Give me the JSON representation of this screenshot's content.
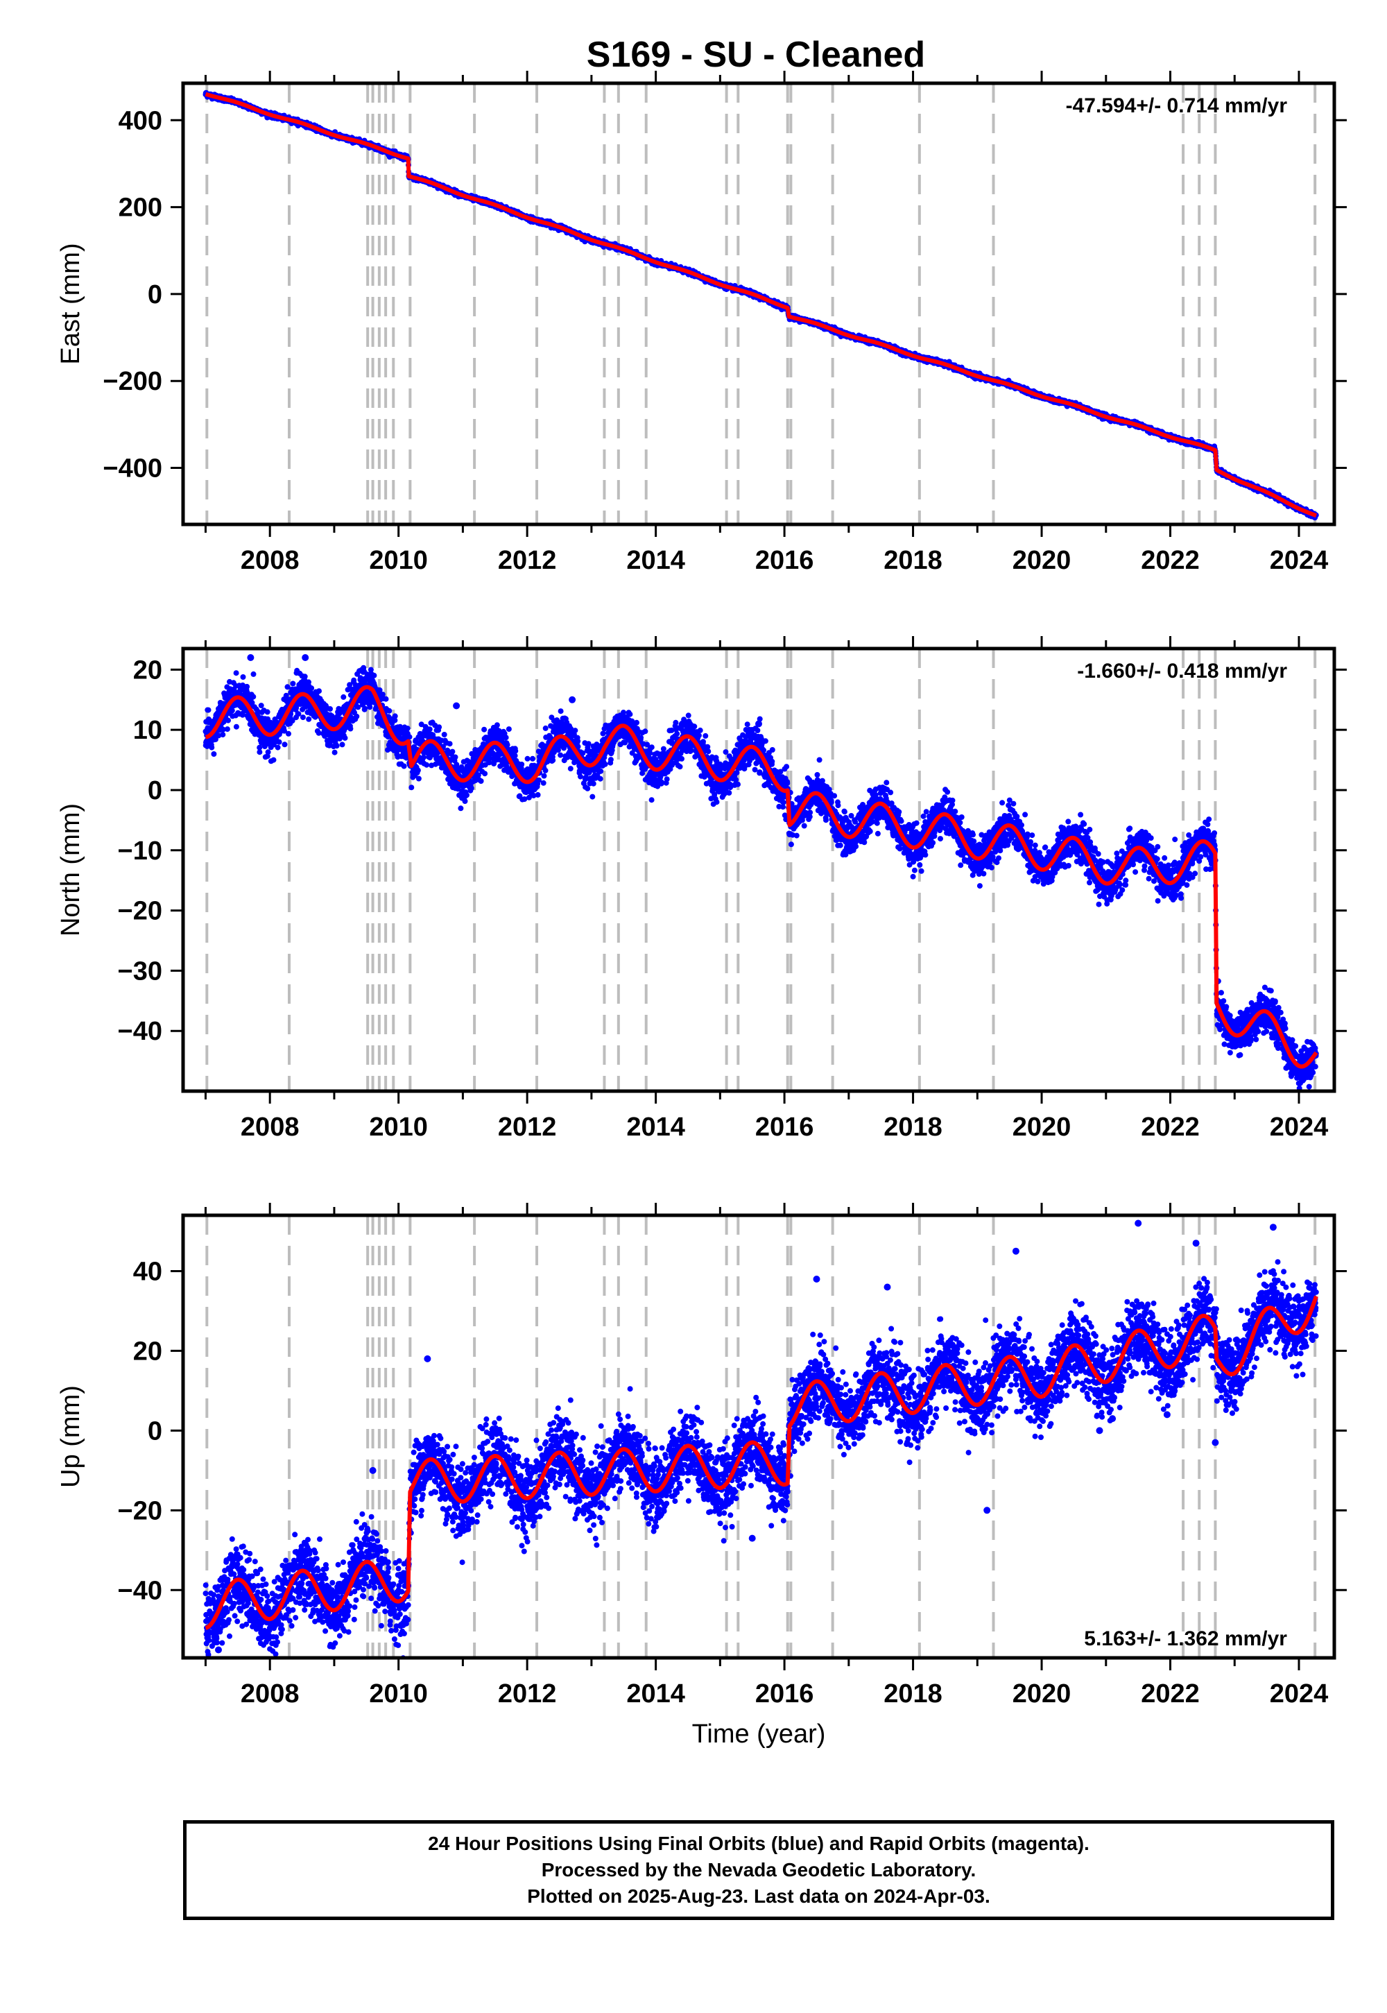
{
  "title": "S169  - SU - Cleaned",
  "xlabel": "Time (year)",
  "footer": {
    "line1": "24 Hour Positions Using Final Orbits (blue) and Rapid Orbits (magenta).",
    "line2": "Processed by the Nevada Geodetic Laboratory.",
    "line3": "Plotted on 2025-Aug-23. Last data on 2024-Apr-03."
  },
  "colors": {
    "data": "#0000ff",
    "model": "#ff0000",
    "events": "#bdbdbd",
    "frame": "#000000"
  },
  "chart_data": [
    {
      "type": "scatter",
      "panel": "east",
      "ylabel": "East (mm)",
      "rate_label": "-47.594+/- 0.714 mm/yr",
      "rate_position": "top-right",
      "xlim": [
        2006.65,
        2024.55
      ],
      "ylim": [
        -530,
        485
      ],
      "x_ticks": [
        2008,
        2010,
        2012,
        2014,
        2016,
        2018,
        2020,
        2022,
        2024
      ],
      "y_ticks": [
        400,
        200,
        0,
        -200,
        -400
      ],
      "y_tick_labels": [
        "400",
        "200",
        "0",
        "−200",
        "−400"
      ],
      "event_lines": [
        2007.02,
        2008.3,
        2009.52,
        2009.6,
        2009.7,
        2009.8,
        2009.92,
        2010.18,
        2011.18,
        2012.15,
        2013.2,
        2013.42,
        2013.85,
        2015.1,
        2015.28,
        2016.05,
        2016.1,
        2016.75,
        2018.1,
        2019.25,
        2022.2,
        2022.45,
        2022.7,
        2024.25
      ],
      "model": [
        [
          2007.0,
          462
        ],
        [
          2010.15,
          313
        ],
        [
          2010.16,
          272
        ],
        [
          2016.05,
          -30
        ],
        [
          2016.07,
          -50
        ],
        [
          2022.7,
          -360
        ],
        [
          2022.72,
          -405
        ],
        [
          2024.27,
          -510
        ]
      ],
      "seasonal_amplitude": 2,
      "noise": 2.5,
      "outliers": []
    },
    {
      "type": "scatter",
      "panel": "north",
      "ylabel": "North (mm)",
      "rate_label": "-1.660+/- 0.418 mm/yr",
      "rate_position": "top-right",
      "xlim": [
        2006.65,
        2024.55
      ],
      "ylim": [
        -50,
        23.5
      ],
      "x_ticks": [
        2008,
        2010,
        2012,
        2014,
        2016,
        2018,
        2020,
        2022,
        2024
      ],
      "y_ticks": [
        20,
        10,
        0,
        -10,
        -20,
        -30,
        -40
      ],
      "y_tick_labels": [
        "20",
        "10",
        "0",
        "−10",
        "−20",
        "−30",
        "−40"
      ],
      "event_lines": [
        2007.02,
        2008.3,
        2009.52,
        2009.6,
        2009.7,
        2009.8,
        2009.92,
        2010.18,
        2011.18,
        2012.15,
        2013.2,
        2013.42,
        2013.85,
        2015.1,
        2015.28,
        2016.05,
        2016.1,
        2016.75,
        2018.1,
        2019.25,
        2022.2,
        2022.45,
        2022.7,
        2024.25
      ],
      "model": [
        [
          2007.0,
          12
        ],
        [
          2008.3,
          12.5
        ],
        [
          2009.6,
          14
        ],
        [
          2010.15,
          10
        ],
        [
          2010.2,
          5
        ],
        [
          2012.15,
          4.5
        ],
        [
          2013.2,
          8
        ],
        [
          2016.05,
          3
        ],
        [
          2016.08,
          -3
        ],
        [
          2018.1,
          -6.5
        ],
        [
          2020.0,
          -10
        ],
        [
          2021.3,
          -13
        ],
        [
          2022.7,
          -11.5
        ],
        [
          2022.72,
          -36
        ],
        [
          2024.27,
          -44
        ]
      ],
      "seasonal_amplitude": 3.2,
      "noise": 1.6,
      "outliers": [
        [
          2007.7,
          22
        ],
        [
          2008.55,
          22
        ],
        [
          2012.7,
          15
        ],
        [
          2015.6,
          11
        ],
        [
          2010.9,
          14
        ]
      ]
    },
    {
      "type": "scatter",
      "panel": "up",
      "ylabel": "Up (mm)",
      "rate_label": "5.163+/- 1.362 mm/yr",
      "rate_position": "bottom-right",
      "xlim": [
        2006.65,
        2024.55
      ],
      "ylim": [
        -57,
        54
      ],
      "x_ticks": [
        2008,
        2010,
        2012,
        2014,
        2016,
        2018,
        2020,
        2022,
        2024
      ],
      "y_ticks": [
        40,
        20,
        0,
        -20,
        -40
      ],
      "y_tick_labels": [
        "40",
        "20",
        "0",
        "−20",
        "−40"
      ],
      "event_lines": [
        2007.02,
        2008.3,
        2009.52,
        2009.6,
        2009.7,
        2009.8,
        2009.92,
        2010.18,
        2011.18,
        2012.15,
        2013.2,
        2013.42,
        2013.85,
        2015.1,
        2015.28,
        2016.05,
        2016.1,
        2016.75,
        2018.1,
        2019.25,
        2022.2,
        2022.45,
        2022.7,
        2024.25
      ],
      "model": [
        [
          2007.0,
          -44
        ],
        [
          2010.15,
          -37
        ],
        [
          2010.18,
          -13
        ],
        [
          2016.05,
          -8
        ],
        [
          2016.08,
          6
        ],
        [
          2020.0,
          14
        ],
        [
          2022.7,
          24
        ],
        [
          2022.72,
          17
        ],
        [
          2024.27,
          33
        ]
      ],
      "seasonal_amplitude": 5.5,
      "noise": 4.5,
      "outliers": [
        [
          2010.45,
          18
        ],
        [
          2009.6,
          -10
        ],
        [
          2016.5,
          38
        ],
        [
          2017.6,
          36
        ],
        [
          2019.6,
          45
        ],
        [
          2021.5,
          52
        ],
        [
          2022.4,
          47
        ],
        [
          2023.6,
          51
        ],
        [
          2021.1,
          3
        ],
        [
          2022.7,
          -3
        ],
        [
          2020.9,
          0
        ],
        [
          2019.15,
          -20
        ],
        [
          2014.9,
          -18
        ],
        [
          2015.5,
          -27
        ],
        [
          2007.2,
          -55
        ],
        [
          2021.95,
          4
        ]
      ]
    }
  ]
}
